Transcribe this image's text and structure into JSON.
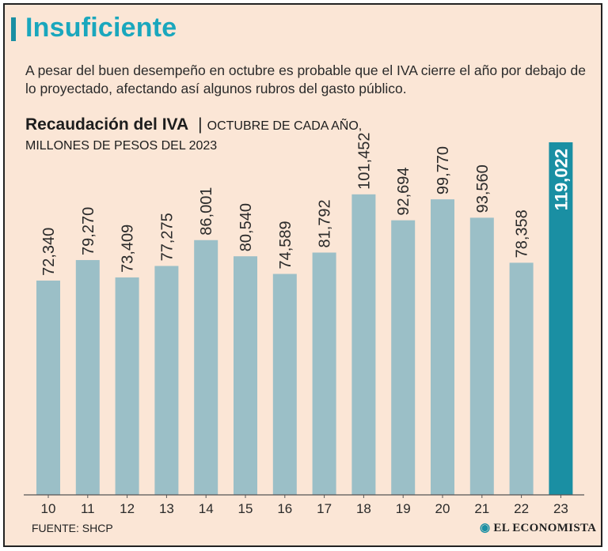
{
  "header": {
    "title": "Insuficiente",
    "subtitle": "A pesar del buen desempeño en octubre es probable que el IVA cierre el año por debajo de lo proyectado, afectando así algunos rubros del gasto público."
  },
  "chart_header": {
    "title": "Recaudación del IVA",
    "separator": "|",
    "unit_line1": "OCTUBRE DE CADA AÑO,",
    "unit_line2": "MILLONES DE PESOS DEL 2023"
  },
  "chart_data": {
    "type": "bar",
    "title": "Recaudación del IVA",
    "xlabel": "",
    "ylabel": "Millones de pesos del 2023",
    "categories": [
      "10",
      "11",
      "12",
      "13",
      "14",
      "15",
      "16",
      "17",
      "18",
      "19",
      "20",
      "21",
      "22",
      "23"
    ],
    "values": [
      72340,
      79270,
      73409,
      77275,
      86001,
      80540,
      74589,
      81792,
      101452,
      92694,
      99770,
      93560,
      78358,
      119022
    ],
    "value_labels": [
      "72,340",
      "79,270",
      "73,409",
      "77,275",
      "86,001",
      "80,540",
      "74,589",
      "81,792",
      "101,452",
      "92,694",
      "99,770",
      "93,560",
      "78,358",
      "119,022"
    ],
    "highlight_index": 13,
    "ylim": [
      0,
      119022
    ],
    "grid": false
  },
  "colors": {
    "background": "#fbe6d6",
    "bar": "#9bbfc7",
    "bar_highlight": "#1a8fa3",
    "title": "#1aa7bd",
    "text": "#2a2a2a"
  },
  "footer": {
    "source": "FUENTE: SHCP",
    "brand": "EL ECONOMISTA"
  }
}
